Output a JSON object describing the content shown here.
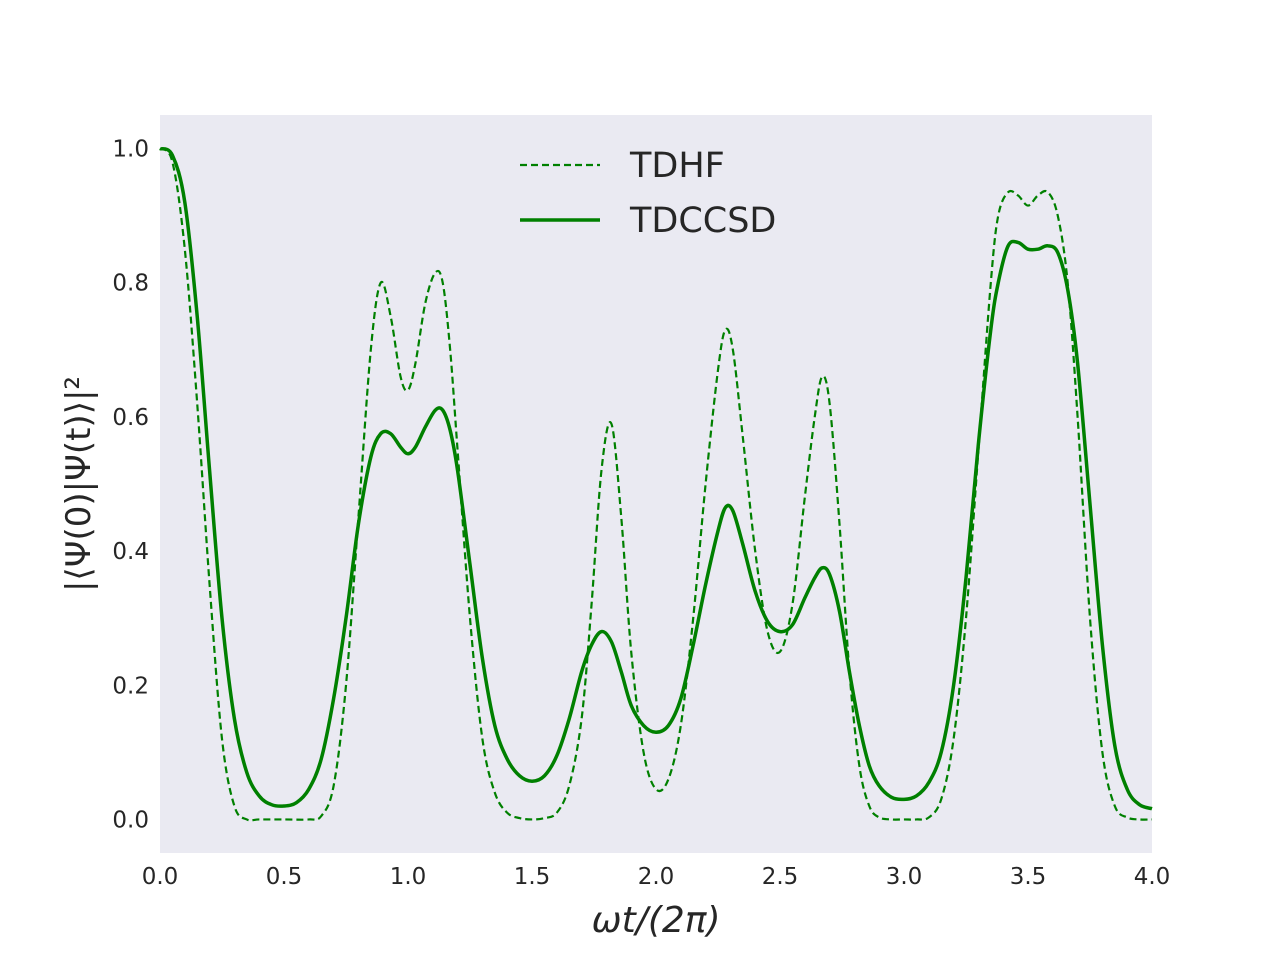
{
  "chart_data": {
    "type": "line",
    "xlabel": "ωt/(2π)",
    "ylabel": "|⟨Ψ(0)|Ψ(t)⟩|²",
    "xlim": [
      0.0,
      4.0
    ],
    "ylim": [
      -0.05,
      1.05
    ],
    "xticks": [
      "0.0",
      "0.5",
      "1.0",
      "1.5",
      "2.0",
      "2.5",
      "3.0",
      "3.5",
      "4.0"
    ],
    "yticks": [
      "0.0",
      "0.2",
      "0.4",
      "0.6",
      "0.8",
      "1.0"
    ],
    "grid": false,
    "background": "#eaeaf2",
    "legend": {
      "placement": "top-center"
    },
    "series": [
      {
        "name": "TDHF",
        "style": "dashed",
        "color": "#008000",
        "x": [
          0.0,
          0.05,
          0.1,
          0.15,
          0.2,
          0.25,
          0.3,
          0.35,
          0.4,
          0.5,
          0.6,
          0.65,
          0.7,
          0.75,
          0.8,
          0.85,
          0.89,
          0.93,
          0.97,
          1.0,
          1.03,
          1.07,
          1.11,
          1.14,
          1.17,
          1.2,
          1.25,
          1.3,
          1.35,
          1.4,
          1.45,
          1.5,
          1.55,
          1.6,
          1.65,
          1.7,
          1.74,
          1.78,
          1.82,
          1.86,
          1.9,
          1.95,
          2.0,
          2.05,
          2.1,
          2.15,
          2.2,
          2.25,
          2.28,
          2.31,
          2.35,
          2.4,
          2.45,
          2.5,
          2.55,
          2.6,
          2.64,
          2.67,
          2.7,
          2.74,
          2.78,
          2.82,
          2.86,
          2.9,
          2.95,
          3.0,
          3.05,
          3.1,
          3.15,
          3.2,
          3.25,
          3.3,
          3.35,
          3.38,
          3.42,
          3.46,
          3.5,
          3.54,
          3.58,
          3.62,
          3.66,
          3.7,
          3.75,
          3.8,
          3.85,
          3.9,
          3.95,
          4.0
        ],
        "y": [
          1.0,
          0.98,
          0.85,
          0.62,
          0.35,
          0.12,
          0.02,
          0.0,
          0.0,
          0.0,
          0.0,
          0.005,
          0.05,
          0.2,
          0.45,
          0.7,
          0.8,
          0.75,
          0.66,
          0.64,
          0.68,
          0.77,
          0.815,
          0.8,
          0.7,
          0.55,
          0.3,
          0.12,
          0.04,
          0.01,
          0.002,
          0.0,
          0.002,
          0.01,
          0.05,
          0.15,
          0.32,
          0.52,
          0.59,
          0.45,
          0.25,
          0.1,
          0.045,
          0.06,
          0.14,
          0.3,
          0.5,
          0.67,
          0.73,
          0.7,
          0.57,
          0.4,
          0.28,
          0.25,
          0.32,
          0.48,
          0.6,
          0.66,
          0.62,
          0.44,
          0.22,
          0.08,
          0.02,
          0.003,
          0.0,
          0.0,
          0.0,
          0.003,
          0.03,
          0.12,
          0.3,
          0.55,
          0.8,
          0.9,
          0.935,
          0.93,
          0.915,
          0.93,
          0.935,
          0.9,
          0.8,
          0.6,
          0.3,
          0.1,
          0.02,
          0.003,
          0.0,
          0.0
        ]
      },
      {
        "name": "TDCCSD",
        "style": "solid",
        "color": "#008000",
        "x": [
          0.0,
          0.05,
          0.1,
          0.15,
          0.2,
          0.25,
          0.3,
          0.35,
          0.4,
          0.45,
          0.5,
          0.55,
          0.6,
          0.65,
          0.7,
          0.75,
          0.8,
          0.85,
          0.89,
          0.93,
          0.97,
          1.0,
          1.03,
          1.07,
          1.11,
          1.14,
          1.17,
          1.2,
          1.25,
          1.3,
          1.35,
          1.4,
          1.45,
          1.5,
          1.55,
          1.6,
          1.65,
          1.7,
          1.74,
          1.78,
          1.82,
          1.86,
          1.9,
          1.95,
          2.0,
          2.05,
          2.1,
          2.15,
          2.2,
          2.25,
          2.28,
          2.31,
          2.35,
          2.4,
          2.45,
          2.5,
          2.55,
          2.6,
          2.64,
          2.67,
          2.7,
          2.74,
          2.78,
          2.82,
          2.86,
          2.9,
          2.95,
          3.0,
          3.05,
          3.1,
          3.15,
          3.2,
          3.25,
          3.3,
          3.35,
          3.38,
          3.42,
          3.46,
          3.5,
          3.54,
          3.58,
          3.62,
          3.66,
          3.7,
          3.75,
          3.8,
          3.85,
          3.9,
          3.95,
          4.0
        ],
        "y": [
          1.0,
          0.99,
          0.92,
          0.75,
          0.52,
          0.3,
          0.15,
          0.07,
          0.035,
          0.022,
          0.02,
          0.025,
          0.045,
          0.09,
          0.18,
          0.3,
          0.44,
          0.54,
          0.575,
          0.575,
          0.555,
          0.545,
          0.555,
          0.585,
          0.61,
          0.61,
          0.58,
          0.52,
          0.38,
          0.24,
          0.14,
          0.09,
          0.065,
          0.057,
          0.065,
          0.095,
          0.15,
          0.22,
          0.26,
          0.28,
          0.265,
          0.22,
          0.17,
          0.14,
          0.13,
          0.14,
          0.18,
          0.26,
          0.35,
          0.43,
          0.465,
          0.46,
          0.41,
          0.34,
          0.295,
          0.28,
          0.29,
          0.33,
          0.36,
          0.375,
          0.365,
          0.31,
          0.22,
          0.14,
          0.08,
          0.05,
          0.033,
          0.03,
          0.035,
          0.055,
          0.1,
          0.2,
          0.36,
          0.56,
          0.73,
          0.8,
          0.855,
          0.86,
          0.85,
          0.85,
          0.855,
          0.845,
          0.79,
          0.68,
          0.47,
          0.26,
          0.11,
          0.045,
          0.022,
          0.016
        ]
      }
    ]
  }
}
